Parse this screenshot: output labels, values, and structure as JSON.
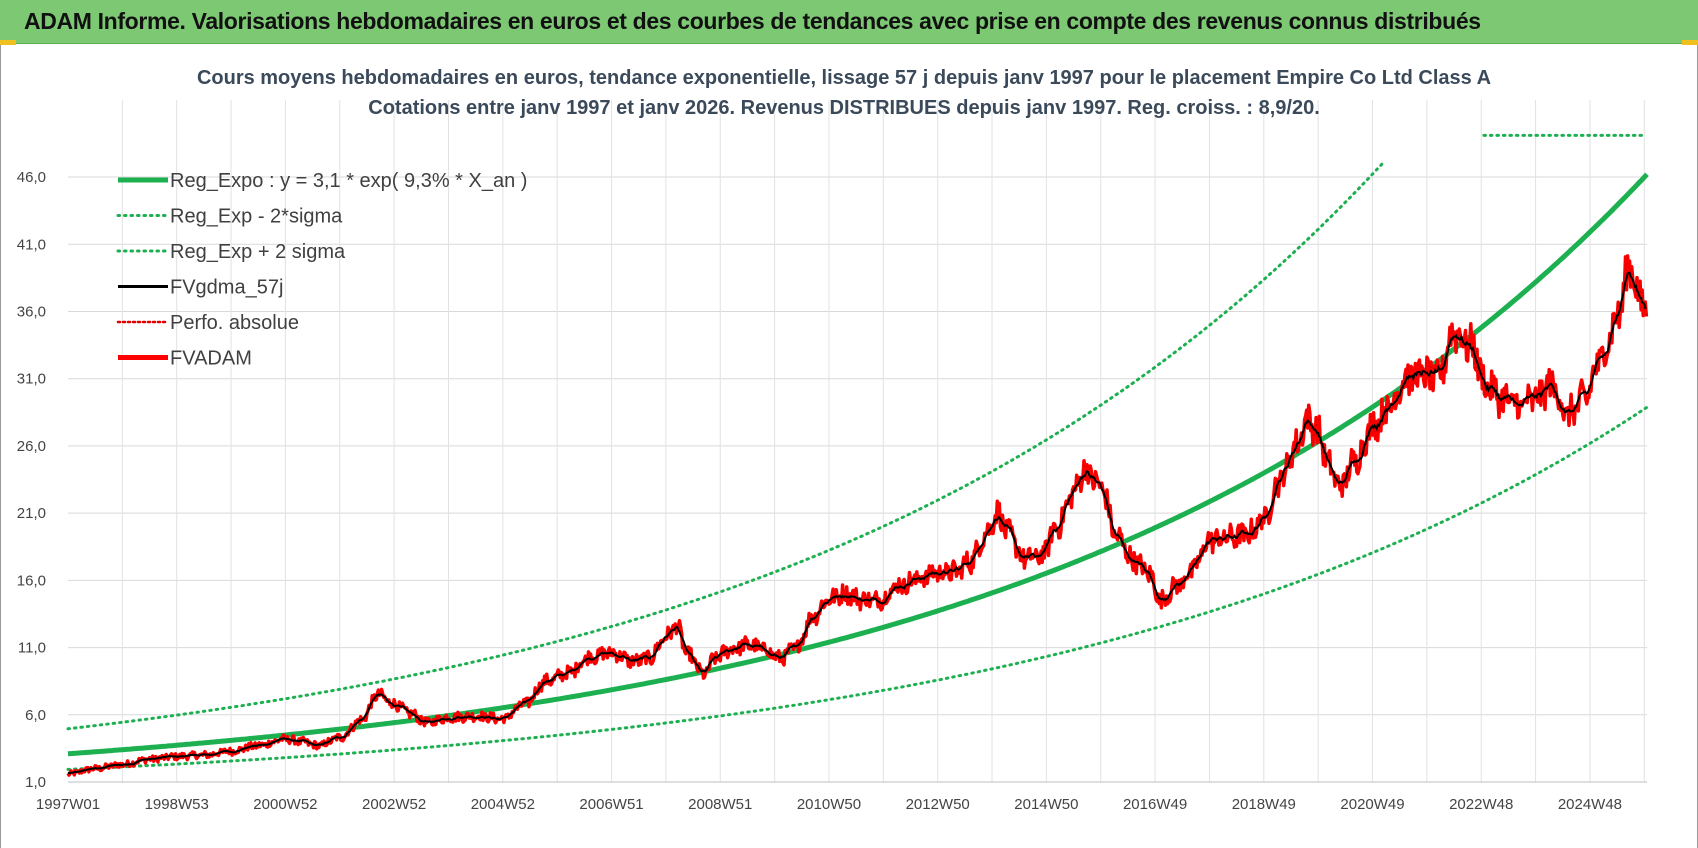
{
  "header": {
    "title": "ADAM Informe. Valorisations hebdomadaires en euros et des courbes de tendances avec prise en compte des revenus connus distribués"
  },
  "colors": {
    "header_bg": "#7dc873",
    "reg_expo": "#1db050",
    "sigma": "#1db050",
    "fvgdma": "#000000",
    "perfo": "#e00000",
    "fvadam": "#ff0000"
  },
  "chart_data": {
    "type": "line",
    "title_line1": "Cours moyens hebdomadaires en euros, tendance exponentielle, lissage 57 j depuis janv 1997 pour le placement Empire Co Ltd Class A",
    "title_line2": "Cotations entre janv 1997 et janv 2026. Revenus DISTRIBUES depuis janv 1997. Reg. croiss. : 8,9/20.",
    "ylim": [
      1.0,
      49.5
    ],
    "yticks": [
      "1,0",
      "6,0",
      "11,0",
      "16,0",
      "21,0",
      "26,0",
      "31,0",
      "36,0",
      "41,0",
      "46,0"
    ],
    "ytick_values": [
      1,
      6,
      11,
      16,
      21,
      26,
      31,
      36,
      41,
      46
    ],
    "xlim": [
      1997.0,
      2026.05
    ],
    "xticks": [
      "1997W01",
      "1998W53",
      "2000W52",
      "2002W52",
      "2004W52",
      "2006W51",
      "2008W51",
      "2010W50",
      "2012W50",
      "2014W50",
      "2016W49",
      "2018W49",
      "2020W49",
      "2022W48",
      "2024W48"
    ],
    "xtick_years": [
      1997.0,
      1999.0,
      2001.0,
      2003.0,
      2005.0,
      2007.0,
      2009.0,
      2011.0,
      2013.0,
      2015.0,
      2017.0,
      2019.0,
      2021.0,
      2023.0,
      2025.0
    ],
    "legend_position": "top-left",
    "regression": {
      "a": 3.1,
      "rate": 0.093,
      "sigma_factor": 1.6
    },
    "series": [
      {
        "name": "Reg_Expo : y = 3,1 * exp( 9,3% *  X_an )",
        "style": "solid-thick-green"
      },
      {
        "name": "Reg_Exp - 2*sigma",
        "style": "dotted-green"
      },
      {
        "name": "Reg_Exp + 2 sigma",
        "style": "dotted-green"
      },
      {
        "name": "FVgdma_57j",
        "style": "solid-black"
      },
      {
        "name": "Perfo. absolue",
        "style": "dotted-red"
      },
      {
        "name": "FVADAM",
        "style": "solid-thick-red"
      }
    ],
    "fvadam_anchors": [
      [
        1997.0,
        1.6
      ],
      [
        1997.5,
        2.0
      ],
      [
        1998.0,
        2.3
      ],
      [
        1998.5,
        2.7
      ],
      [
        1999.0,
        2.9
      ],
      [
        1999.5,
        3.0
      ],
      [
        2000.0,
        3.3
      ],
      [
        2000.5,
        3.7
      ],
      [
        2001.0,
        4.2
      ],
      [
        2001.3,
        4.0
      ],
      [
        2001.6,
        3.7
      ],
      [
        2002.0,
        4.3
      ],
      [
        2002.4,
        5.6
      ],
      [
        2002.7,
        7.5
      ],
      [
        2003.0,
        6.8
      ],
      [
        2003.3,
        6.1
      ],
      [
        2003.6,
        5.4
      ],
      [
        2004.0,
        5.8
      ],
      [
        2004.5,
        5.9
      ],
      [
        2005.0,
        5.7
      ],
      [
        2005.4,
        6.8
      ],
      [
        2005.8,
        8.5
      ],
      [
        2006.2,
        9.1
      ],
      [
        2006.6,
        10.3
      ],
      [
        2007.0,
        10.6
      ],
      [
        2007.4,
        10.0
      ],
      [
        2007.7,
        10.2
      ],
      [
        2008.0,
        11.8
      ],
      [
        2008.2,
        12.6
      ],
      [
        2008.4,
        10.5
      ],
      [
        2008.7,
        9.0
      ],
      [
        2008.9,
        10.2
      ],
      [
        2009.2,
        10.9
      ],
      [
        2009.5,
        11.2
      ],
      [
        2009.8,
        10.9
      ],
      [
        2010.1,
        10.2
      ],
      [
        2010.4,
        11.0
      ],
      [
        2010.7,
        13.3
      ],
      [
        2011.0,
        14.6
      ],
      [
        2011.3,
        15.0
      ],
      [
        2011.6,
        14.6
      ],
      [
        2011.9,
        14.5
      ],
      [
        2012.3,
        15.6
      ],
      [
        2012.7,
        16.2
      ],
      [
        2013.0,
        16.6
      ],
      [
        2013.3,
        16.6
      ],
      [
        2013.6,
        17.4
      ],
      [
        2013.9,
        19.5
      ],
      [
        2014.1,
        21.0
      ],
      [
        2014.3,
        19.5
      ],
      [
        2014.6,
        17.6
      ],
      [
        2014.9,
        17.8
      ],
      [
        2015.2,
        20.0
      ],
      [
        2015.5,
        22.5
      ],
      [
        2015.7,
        24.2
      ],
      [
        2016.0,
        23.0
      ],
      [
        2016.3,
        19.2
      ],
      [
        2016.6,
        17.5
      ],
      [
        2016.9,
        16.5
      ],
      [
        2017.1,
        14.5
      ],
      [
        2017.4,
        15.6
      ],
      [
        2017.7,
        16.8
      ],
      [
        2018.0,
        19.0
      ],
      [
        2018.4,
        19.2
      ],
      [
        2018.7,
        19.4
      ],
      [
        2019.0,
        20.5
      ],
      [
        2019.3,
        23.5
      ],
      [
        2019.6,
        26.0
      ],
      [
        2019.8,
        28.0
      ],
      [
        2020.0,
        27.0
      ],
      [
        2020.2,
        24.5
      ],
      [
        2020.4,
        23.0
      ],
      [
        2020.7,
        25.0
      ],
      [
        2021.0,
        27.5
      ],
      [
        2021.3,
        28.8
      ],
      [
        2021.6,
        31.0
      ],
      [
        2021.9,
        31.3
      ],
      [
        2022.2,
        31.0
      ],
      [
        2022.5,
        34.5
      ],
      [
        2022.8,
        33.5
      ],
      [
        2023.1,
        30.5
      ],
      [
        2023.4,
        29.5
      ],
      [
        2023.7,
        29.0
      ],
      [
        2024.0,
        29.5
      ],
      [
        2024.3,
        30.5
      ],
      [
        2024.6,
        28.3
      ],
      [
        2024.9,
        29.5
      ],
      [
        2025.2,
        32.5
      ],
      [
        2025.5,
        35.5
      ],
      [
        2025.75,
        39.5
      ],
      [
        2025.9,
        37.0
      ],
      [
        2026.05,
        36.2
      ]
    ]
  }
}
